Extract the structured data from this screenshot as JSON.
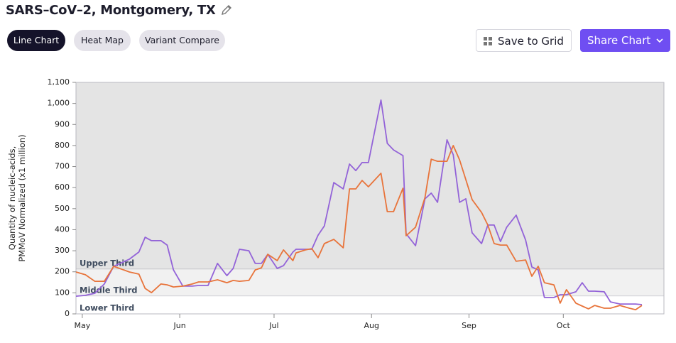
{
  "header": {
    "title": "SARS–CoV–2, Montgomery, TX"
  },
  "tabs": [
    "Line Chart",
    "Heat Map",
    "Variant Compare"
  ],
  "actions": [
    "Save to Grid",
    "Share Chart"
  ],
  "chart_data": {
    "type": "line",
    "ylabel": [
      "Quantity of nucleic-acids,",
      "PMMoV Normalized (x1 million)"
    ],
    "x": [
      -2,
      1,
      4,
      7,
      10,
      15,
      18,
      20,
      22,
      25,
      27,
      29,
      32,
      35,
      37,
      40,
      43,
      46,
      48,
      50,
      53,
      55,
      57,
      59,
      62,
      64,
      67,
      68,
      71,
      73,
      75,
      77,
      80,
      83,
      85,
      87,
      89,
      91,
      95,
      97,
      99,
      102,
      103,
      106,
      109,
      111,
      113,
      116,
      118,
      120,
      122,
      124,
      127,
      129,
      131,
      133,
      135,
      138,
      141,
      143,
      145,
      147,
      150,
      152,
      154,
      157,
      159,
      161,
      163,
      166,
      168,
      171,
      174,
      176,
      178
    ],
    "series": [
      {
        "color": "#9363d8",
        "values": [
          84,
          88,
          98,
          142,
          226,
          260,
          294,
          364,
          348,
          348,
          327,
          209,
          132,
          132,
          135,
          135,
          240,
          182,
          216,
          307,
          300,
          240,
          240,
          283,
          216,
          229,
          294,
          307,
          307,
          307,
          374,
          418,
          624,
          594,
          712,
          681,
          719,
          719,
          1016,
          810,
          779,
          752,
          381,
          324,
          547,
          574,
          530,
          827,
          756,
          530,
          547,
          385,
          334,
          422,
          422,
          344,
          412,
          469,
          351,
          223,
          209,
          78,
          78,
          91,
          91,
          105,
          148,
          108,
          108,
          105,
          57,
          47,
          47,
          47,
          44
        ]
      },
      {
        "color": "#e8743b",
        "values": [
          199,
          186,
          155,
          155,
          226,
          199,
          189,
          121,
          101,
          142,
          138,
          128,
          132,
          142,
          152,
          152,
          162,
          148,
          159,
          155,
          159,
          209,
          219,
          283,
          253,
          304,
          253,
          290,
          304,
          310,
          267,
          334,
          354,
          314,
          594,
          594,
          634,
          604,
          668,
          486,
          486,
          597,
          371,
          412,
          553,
          735,
          725,
          725,
          800,
          732,
          638,
          543,
          482,
          422,
          334,
          327,
          327,
          250,
          256,
          179,
          226,
          148,
          138,
          51,
          115,
          51,
          37,
          24,
          40,
          27,
          27,
          40,
          27,
          20,
          40
        ]
      }
    ],
    "bands": [
      {
        "label": "Upper Third",
        "from": 212,
        "to": 1100,
        "color": "#e4e4e4"
      },
      {
        "label": "Middle Third",
        "from": 84,
        "to": 212,
        "color": "#f1f1f1"
      },
      {
        "label": "Lower Third",
        "from": 0,
        "to": 84,
        "color": "#ffffff"
      }
    ],
    "xlim": [
      -2,
      185
    ],
    "xticks": [
      {
        "value": 0,
        "label": "May"
      },
      {
        "value": 31,
        "label": "Jun"
      },
      {
        "value": 61,
        "label": "Jul"
      },
      {
        "value": 92,
        "label": "Aug"
      },
      {
        "value": 123,
        "label": "Sep"
      },
      {
        "value": 153,
        "label": "Oct"
      }
    ],
    "ylim": [
      0,
      1100
    ],
    "yticks": [
      0,
      100,
      200,
      300,
      400,
      500,
      600,
      700,
      800,
      900,
      {
        "value": 1000,
        "label": "1,000"
      },
      {
        "value": 1100,
        "label": "1,100"
      }
    ]
  }
}
